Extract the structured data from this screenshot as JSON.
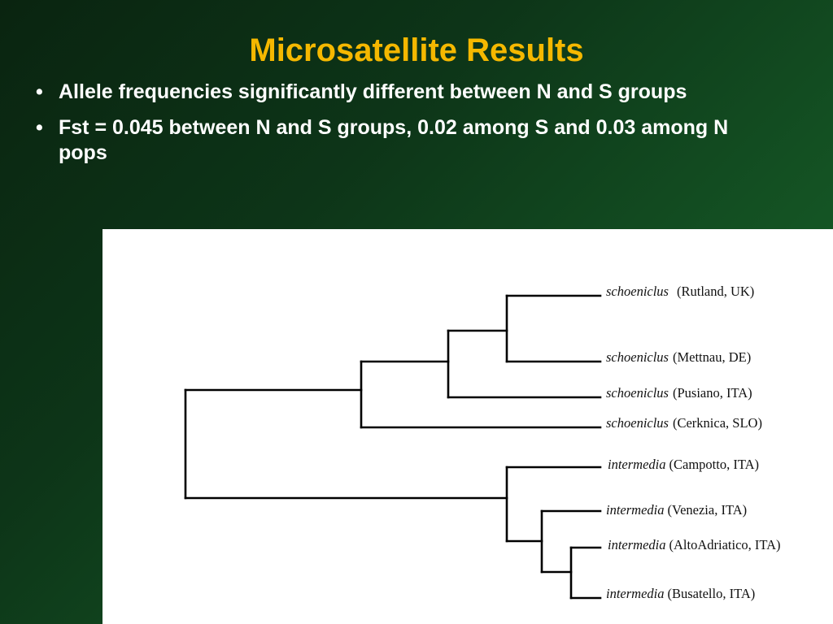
{
  "slide": {
    "title": "Microsatellite Results",
    "bullets": [
      "Allele frequencies significantly different between N and S groups",
      "Fst = 0.045 between N and S groups, 0.02 among S and 0.03 among N pops"
    ],
    "bullet_symbol": "•"
  },
  "tree": {
    "leaves": [
      {
        "taxon": "schoeniclus",
        "locality": "(Rutland, UK)"
      },
      {
        "taxon": "schoeniclus",
        "locality": "(Mettnau, DE)"
      },
      {
        "taxon": "schoeniclus",
        "locality": "(Pusiano, ITA)"
      },
      {
        "taxon": "schoeniclus",
        "locality": "(Cerknica, SLO)"
      },
      {
        "taxon": "intermedia",
        "locality": "(Campotto, ITA)"
      },
      {
        "taxon": "intermedia",
        "locality": "(Venezia, ITA)"
      },
      {
        "taxon": "intermedia",
        "locality": "(AltoAdriatico, ITA)"
      },
      {
        "taxon": "intermedia",
        "locality": "(Busatello, ITA)"
      }
    ]
  },
  "colors": {
    "title": "#f5b800",
    "text": "#ffffff",
    "panel": "#ffffff",
    "tree_lines": "#000000"
  }
}
